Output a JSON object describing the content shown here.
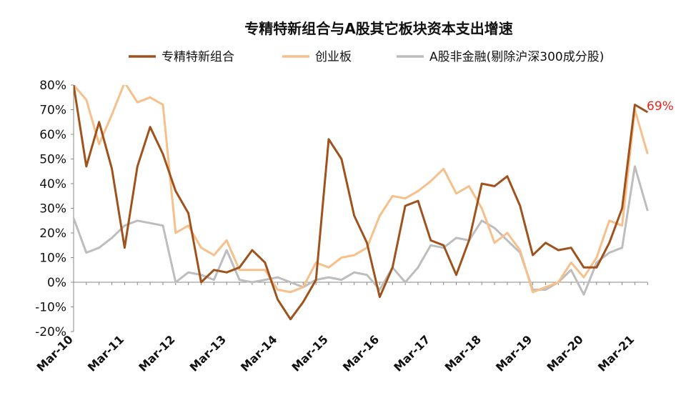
{
  "chart_data": {
    "type": "line",
    "title": "专精特新组合与A股其它板块资本支出增速",
    "xlabel": "",
    "ylabel": "",
    "ylim": [
      -0.2,
      0.8
    ],
    "yticks": [
      "80%",
      "70%",
      "60%",
      "50%",
      "40%",
      "30%",
      "20%",
      "10%",
      "0%",
      "-10%",
      "-20%"
    ],
    "ytick_values": [
      0.8,
      0.7,
      0.6,
      0.5,
      0.4,
      0.3,
      0.2,
      0.1,
      0.0,
      -0.1,
      -0.2
    ],
    "x_tick_labels": [
      "Mar-10",
      "Mar-11",
      "Mar-12",
      "Mar-13",
      "Mar-14",
      "Mar-15",
      "Mar-16",
      "Mar-17",
      "Mar-18",
      "Mar-19",
      "Mar-20",
      "Mar-21"
    ],
    "x_tick_positions": [
      0,
      4,
      8,
      12,
      16,
      20,
      24,
      28,
      32,
      36,
      40,
      44
    ],
    "grid": false,
    "legend_position": "top",
    "annotation": {
      "text": "69%",
      "color": "#e8261c"
    },
    "series": [
      {
        "name": "专精特新组合",
        "color": "#a0521d",
        "values": [
          0.8,
          0.47,
          0.65,
          0.46,
          0.14,
          0.47,
          0.63,
          0.52,
          0.37,
          0.28,
          0.0,
          0.05,
          0.04,
          0.06,
          0.13,
          0.08,
          -0.07,
          -0.15,
          -0.08,
          0.01,
          0.58,
          0.5,
          0.27,
          0.16,
          -0.06,
          0.06,
          0.31,
          0.33,
          0.17,
          0.15,
          0.03,
          0.17,
          0.4,
          0.39,
          0.43,
          0.31,
          0.11,
          0.16,
          0.13,
          0.14,
          0.06,
          0.06,
          0.16,
          0.3,
          0.72,
          0.69
        ]
      },
      {
        "name": "创业板",
        "color": "#f7bf8a",
        "values": [
          0.8,
          0.74,
          0.56,
          0.68,
          0.81,
          0.73,
          0.75,
          0.72,
          0.2,
          0.23,
          0.14,
          0.11,
          0.17,
          0.05,
          0.05,
          0.05,
          -0.03,
          -0.04,
          -0.02,
          0.08,
          0.06,
          0.1,
          0.11,
          0.14,
          0.27,
          0.35,
          0.34,
          0.37,
          0.41,
          0.46,
          0.36,
          0.39,
          0.3,
          0.16,
          0.2,
          0.13,
          -0.04,
          -0.02,
          0.0,
          0.08,
          0.02,
          0.1,
          0.25,
          0.23,
          0.7,
          0.52
        ]
      },
      {
        "name": "A股非金融(剔除沪深300成分股)",
        "color": "#bdbdbd",
        "values": [
          0.26,
          0.12,
          0.14,
          0.18,
          0.23,
          0.25,
          0.24,
          0.23,
          0.0,
          0.04,
          0.03,
          0.01,
          0.13,
          0.01,
          0.0,
          0.01,
          0.02,
          0.0,
          -0.02,
          0.01,
          0.02,
          0.01,
          0.04,
          0.03,
          -0.03,
          0.06,
          0.0,
          0.06,
          0.15,
          0.14,
          0.18,
          0.17,
          0.25,
          0.22,
          0.17,
          0.12,
          -0.03,
          -0.03,
          0.0,
          0.05,
          -0.05,
          0.08,
          0.12,
          0.14,
          0.47,
          0.29
        ]
      }
    ]
  }
}
